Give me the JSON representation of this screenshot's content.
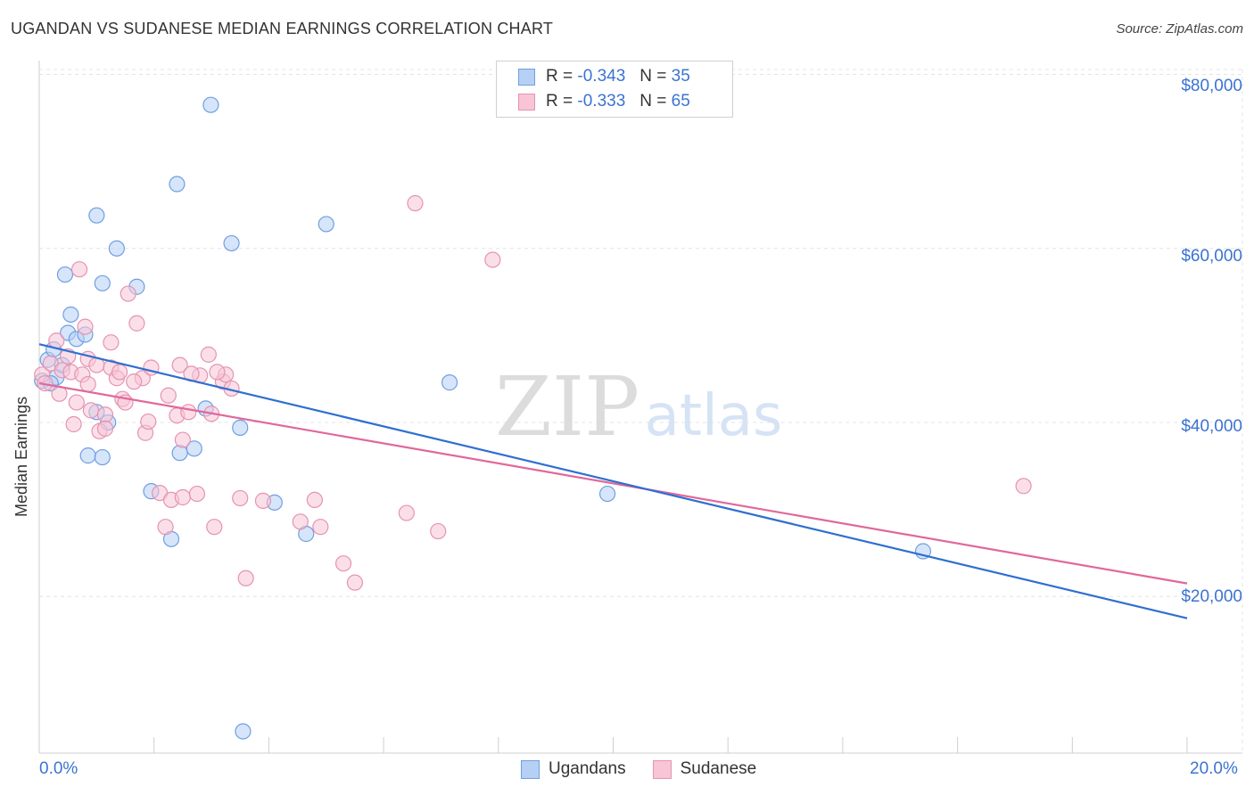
{
  "title": "UGANDAN VS SUDANESE MEDIAN EARNINGS CORRELATION CHART",
  "source": "Source: ZipAtlas.com",
  "watermark": {
    "zip": "ZIP",
    "atlas": "atlas"
  },
  "legend_top": [
    {
      "r_label": "R =",
      "r_value": "-0.343",
      "n_label": "N =",
      "n_value": "35"
    },
    {
      "r_label": "R =",
      "r_value": "-0.333",
      "n_label": "N =",
      "n_value": "65"
    }
  ],
  "legend_bottom": [
    "Ugandans",
    "Sudanese"
  ],
  "chart_data": {
    "type": "scatter",
    "title": "UGANDAN VS SUDANESE MEDIAN EARNINGS CORRELATION CHART",
    "ylabel": "Median Earnings",
    "xlabel": "",
    "xlim": [
      0,
      20
    ],
    "ylim": [
      2000,
      82000
    ],
    "x_tick_labels": [
      "0.0%",
      "20.0%"
    ],
    "y_ticks": [
      {
        "value": 20000,
        "label": "$20,000"
      },
      {
        "value": 40000,
        "label": "$40,000"
      },
      {
        "value": 60000,
        "label": "$60,000"
      },
      {
        "value": 80000,
        "label": "$80,000"
      }
    ],
    "colors": {
      "ugandans_fill": "#b6d0f5",
      "ugandans_stroke": "#6f9fe0",
      "ugandans_line": "#2f6fd1",
      "sudanese_fill": "#f7c5d5",
      "sudanese_stroke": "#e693b1",
      "sudanese_line": "#e0689a"
    },
    "series": [
      {
        "name": "Ugandans",
        "r": -0.343,
        "n": 35,
        "trend": [
          [
            0,
            49000
          ],
          [
            20,
            17500
          ]
        ],
        "points": [
          [
            0.05,
            44800
          ],
          [
            0.15,
            47200
          ],
          [
            0.25,
            48400
          ],
          [
            0.3,
            45200
          ],
          [
            0.4,
            46600
          ],
          [
            0.5,
            50300
          ],
          [
            0.55,
            52400
          ],
          [
            0.65,
            49600
          ],
          [
            0.8,
            50100
          ],
          [
            0.45,
            57000
          ],
          [
            0.85,
            36200
          ],
          [
            1.0,
            41200
          ],
          [
            1.1,
            36000
          ],
          [
            1.2,
            40000
          ],
          [
            1.0,
            63800
          ],
          [
            1.1,
            56000
          ],
          [
            1.35,
            60000
          ],
          [
            1.7,
            55600
          ],
          [
            1.95,
            32100
          ],
          [
            2.3,
            26600
          ],
          [
            2.4,
            67400
          ],
          [
            2.45,
            36500
          ],
          [
            2.7,
            37000
          ],
          [
            2.9,
            41600
          ],
          [
            2.99,
            76500
          ],
          [
            3.35,
            60600
          ],
          [
            3.5,
            39400
          ],
          [
            3.55,
            4500
          ],
          [
            4.1,
            30800
          ],
          [
            4.65,
            27200
          ],
          [
            5.0,
            62800
          ],
          [
            7.15,
            44600
          ],
          [
            9.9,
            31800
          ],
          [
            15.4,
            25200
          ],
          [
            0.2,
            44500
          ]
        ]
      },
      {
        "name": "Sudanese",
        "r": -0.333,
        "n": 65,
        "trend": [
          [
            0,
            44500
          ],
          [
            20,
            21500
          ]
        ],
        "points": [
          [
            0.05,
            45500
          ],
          [
            0.1,
            44500
          ],
          [
            0.2,
            46800
          ],
          [
            0.3,
            49400
          ],
          [
            0.4,
            46000
          ],
          [
            0.5,
            47600
          ],
          [
            0.55,
            45800
          ],
          [
            0.6,
            39800
          ],
          [
            0.65,
            42300
          ],
          [
            0.75,
            45500
          ],
          [
            0.85,
            44400
          ],
          [
            0.9,
            41400
          ],
          [
            0.8,
            51000
          ],
          [
            0.85,
            47300
          ],
          [
            1.0,
            46600
          ],
          [
            1.05,
            39000
          ],
          [
            1.15,
            40900
          ],
          [
            1.15,
            39300
          ],
          [
            1.25,
            49200
          ],
          [
            1.25,
            46300
          ],
          [
            1.35,
            45100
          ],
          [
            1.4,
            45800
          ],
          [
            1.45,
            42700
          ],
          [
            1.5,
            42300
          ],
          [
            1.55,
            54800
          ],
          [
            1.7,
            51400
          ],
          [
            1.8,
            45100
          ],
          [
            1.85,
            38800
          ],
          [
            1.9,
            40100
          ],
          [
            1.95,
            46300
          ],
          [
            2.1,
            31900
          ],
          [
            2.2,
            28000
          ],
          [
            2.25,
            43100
          ],
          [
            2.3,
            31100
          ],
          [
            2.4,
            40800
          ],
          [
            2.45,
            46600
          ],
          [
            2.5,
            31400
          ],
          [
            2.5,
            38000
          ],
          [
            2.6,
            41200
          ],
          [
            2.75,
            31800
          ],
          [
            2.8,
            45400
          ],
          [
            2.95,
            47800
          ],
          [
            3.0,
            41000
          ],
          [
            3.05,
            28000
          ],
          [
            3.2,
            44700
          ],
          [
            3.25,
            45500
          ],
          [
            3.35,
            43900
          ],
          [
            3.5,
            31300
          ],
          [
            3.6,
            22100
          ],
          [
            3.9,
            31000
          ],
          [
            4.55,
            28600
          ],
          [
            4.8,
            31100
          ],
          [
            4.9,
            28000
          ],
          [
            5.3,
            23800
          ],
          [
            5.5,
            21600
          ],
          [
            6.4,
            29600
          ],
          [
            6.55,
            65200
          ],
          [
            6.95,
            27500
          ],
          [
            7.9,
            58700
          ],
          [
            17.15,
            32700
          ],
          [
            0.7,
            57600
          ],
          [
            0.35,
            43300
          ],
          [
            2.65,
            45600
          ],
          [
            3.1,
            45800
          ],
          [
            1.65,
            44700
          ]
        ]
      }
    ]
  }
}
